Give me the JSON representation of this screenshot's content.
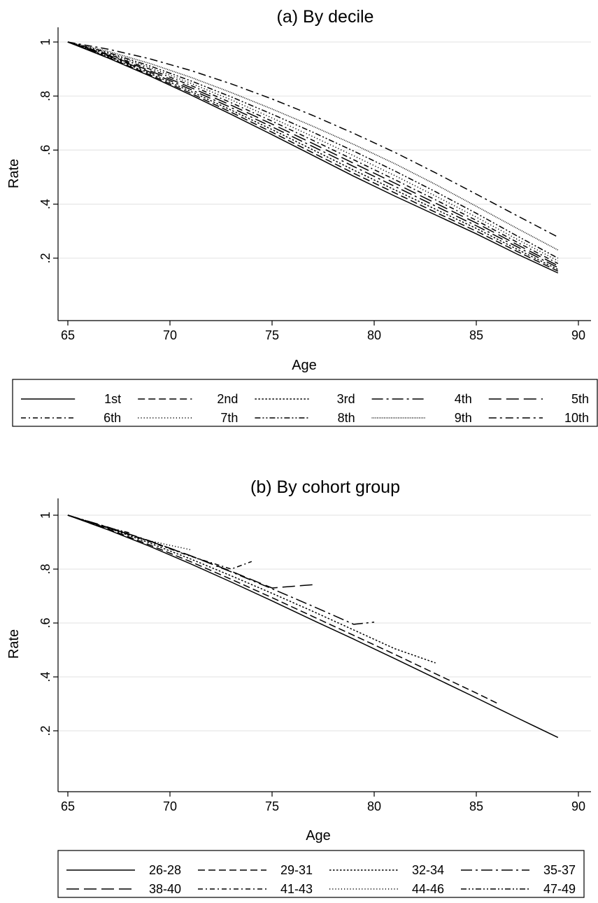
{
  "chart_data": [
    {
      "type": "line",
      "title": "(a) By decile",
      "xlabel": "Age",
      "ylabel": "Rate",
      "xlim": [
        65,
        90
      ],
      "ylim": [
        0,
        1
      ],
      "x_ticks": [
        "65",
        "70",
        "75",
        "80",
        "85",
        "90"
      ],
      "y_ticks": [
        ".2",
        ".4",
        ".6",
        ".8",
        "1"
      ],
      "grid": "horizontal",
      "legend_position": "bottom",
      "legend_columns": 5,
      "x": [
        65,
        67,
        69,
        71,
        73,
        75,
        77,
        79,
        81,
        83,
        85,
        87,
        89
      ],
      "series": [
        {
          "name": "1st",
          "dash": "solid",
          "values": [
            1.0,
            0.94,
            0.875,
            0.805,
            0.732,
            0.657,
            0.58,
            0.503,
            0.43,
            0.36,
            0.29,
            0.215,
            0.145
          ]
        },
        {
          "name": "2nd",
          "dash": "dashed",
          "values": [
            1.0,
            0.942,
            0.879,
            0.811,
            0.74,
            0.666,
            0.59,
            0.514,
            0.442,
            0.37,
            0.3,
            0.225,
            0.152
          ]
        },
        {
          "name": "3rd",
          "dash": "dotted",
          "values": [
            1.0,
            0.945,
            0.884,
            0.818,
            0.748,
            0.676,
            0.601,
            0.526,
            0.453,
            0.381,
            0.31,
            0.233,
            0.158
          ]
        },
        {
          "name": "4th",
          "dash": "longdashdot",
          "values": [
            1.0,
            0.948,
            0.889,
            0.825,
            0.757,
            0.686,
            0.613,
            0.539,
            0.466,
            0.393,
            0.32,
            0.242,
            0.165
          ]
        },
        {
          "name": "5th",
          "dash": "longdash",
          "values": [
            1.0,
            0.951,
            0.894,
            0.832,
            0.766,
            0.696,
            0.624,
            0.551,
            0.478,
            0.404,
            0.33,
            0.25,
            0.172
          ]
        },
        {
          "name": "6th",
          "dash": "shortdashdot",
          "values": [
            1.0,
            0.954,
            0.9,
            0.84,
            0.775,
            0.707,
            0.636,
            0.564,
            0.491,
            0.416,
            0.34,
            0.259,
            0.18
          ]
        },
        {
          "name": "7th",
          "dash": "shortdot",
          "values": [
            1.0,
            0.957,
            0.906,
            0.848,
            0.786,
            0.719,
            0.65,
            0.579,
            0.506,
            0.43,
            0.352,
            0.27,
            0.19
          ]
        },
        {
          "name": "8th",
          "dash": "dashdotdot",
          "values": [
            1.0,
            0.96,
            0.912,
            0.857,
            0.797,
            0.733,
            0.666,
            0.596,
            0.523,
            0.446,
            0.366,
            0.282,
            0.2
          ]
        },
        {
          "name": "9th",
          "dash": "densedot",
          "values": [
            1.0,
            0.965,
            0.921,
            0.87,
            0.813,
            0.752,
            0.688,
            0.621,
            0.55,
            0.473,
            0.392,
            0.31,
            0.23
          ]
        },
        {
          "name": "10th",
          "dash": "dashdot",
          "values": [
            1.0,
            0.973,
            0.938,
            0.895,
            0.845,
            0.789,
            0.728,
            0.662,
            0.592,
            0.516,
            0.437,
            0.357,
            0.278
          ]
        }
      ]
    },
    {
      "type": "line",
      "title": "(b) By cohort group",
      "xlabel": "Age",
      "ylabel": "Rate",
      "xlim": [
        65,
        90
      ],
      "ylim": [
        0,
        1
      ],
      "x_ticks": [
        "65",
        "70",
        "75",
        "80",
        "85",
        "90"
      ],
      "y_ticks": [
        ".2",
        ".4",
        ".6",
        ".8",
        "1"
      ],
      "grid": "horizontal",
      "legend_position": "bottom",
      "legend_columns": 4,
      "series": [
        {
          "name": "26-28",
          "dash": "solid",
          "x": [
            65,
            67,
            69,
            71,
            73,
            75,
            77,
            79,
            81,
            83,
            85,
            87,
            89
          ],
          "values": [
            1.0,
            0.945,
            0.885,
            0.82,
            0.752,
            0.682,
            0.61,
            0.54,
            0.468,
            0.395,
            0.322,
            0.248,
            0.175
          ]
        },
        {
          "name": "29-31",
          "dash": "dashed",
          "x": [
            65,
            67,
            69,
            71,
            73,
            75,
            77,
            79,
            81,
            83,
            85,
            86
          ],
          "values": [
            1.0,
            0.948,
            0.89,
            0.828,
            0.762,
            0.694,
            0.624,
            0.554,
            0.484,
            0.412,
            0.34,
            0.303
          ]
        },
        {
          "name": "32-34",
          "dash": "dotted",
          "x": [
            65,
            67,
            69,
            71,
            73,
            75,
            77,
            79,
            81,
            83
          ],
          "values": [
            1.0,
            0.952,
            0.897,
            0.838,
            0.775,
            0.71,
            0.643,
            0.574,
            0.505,
            0.452
          ]
        },
        {
          "name": "35-37",
          "dash": "longdashdot",
          "x": [
            65,
            67,
            69,
            71,
            73,
            75,
            77,
            79,
            80
          ],
          "values": [
            1.0,
            0.955,
            0.905,
            0.85,
            0.79,
            0.727,
            0.662,
            0.595,
            0.603
          ]
        },
        {
          "name": "38-40",
          "dash": "longdash",
          "x": [
            65,
            67,
            69,
            71,
            73,
            75,
            77
          ],
          "values": [
            1.0,
            0.954,
            0.904,
            0.85,
            0.792,
            0.73,
            0.742
          ]
        },
        {
          "name": "41-43",
          "dash": "shortdashdot",
          "x": [
            65,
            67,
            69,
            71,
            73,
            74
          ],
          "values": [
            1.0,
            0.953,
            0.902,
            0.848,
            0.8,
            0.828
          ]
        },
        {
          "name": "44-46",
          "dash": "shortdot",
          "x": [
            65,
            67,
            69,
            71
          ],
          "values": [
            1.0,
            0.952,
            0.905,
            0.872
          ]
        },
        {
          "name": "47-49",
          "dash": "dashdotdot",
          "x": [
            65,
            66.5,
            68
          ],
          "values": [
            1.0,
            0.962,
            0.935
          ]
        }
      ]
    }
  ]
}
